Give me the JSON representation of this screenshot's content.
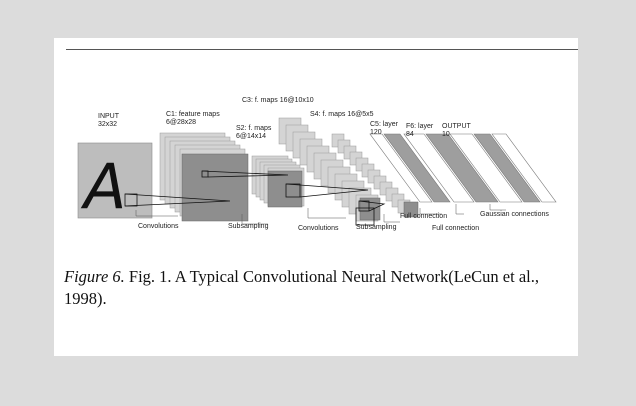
{
  "diagram": {
    "labels": {
      "input_title": "INPUT",
      "input_size": "32x32",
      "c1_title": "C1: feature maps",
      "c1_size": "6@28x28",
      "c3_title": "C3: f. maps 16@10x10",
      "s2_title": "S2: f. maps",
      "s2_size": "6@14x14",
      "s4_title": "S4: f. maps 16@5x5",
      "c5_title": "C5: layer",
      "c5_size": "120",
      "f6_title": "F6: layer",
      "f6_size": "84",
      "output_title": "OUTPUT",
      "output_size": "10"
    },
    "operations": {
      "convolutions_1": "Convolutions",
      "subsampling_1": "Subsampling",
      "convolutions_2": "Convolutions",
      "subsampling_2": "Subsampling",
      "full_connection_1": "Full connection",
      "full_connection_2": "Full connection",
      "gaussian": "Gaussian connections"
    },
    "input_glyph": "A"
  },
  "caption": {
    "label": "Figure 6.",
    "text": " Fig. 1. A Typical Convolutional Neural Network(LeCun et al., 1998)."
  }
}
